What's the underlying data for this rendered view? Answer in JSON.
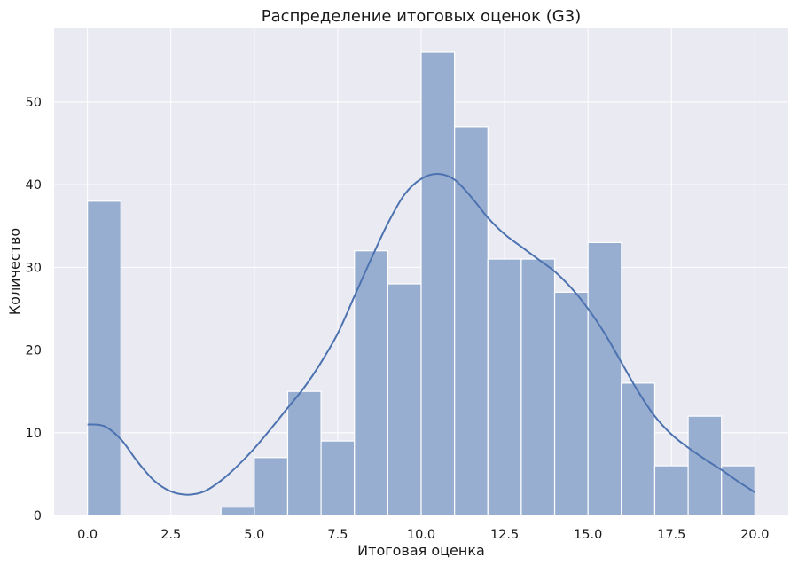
{
  "chart_data": {
    "type": "bar",
    "title": "Распределение итоговых оценок (G3)",
    "xlabel": "Итоговая оценка",
    "ylabel": "Количество",
    "xlim": [
      -1,
      21
    ],
    "ylim": [
      0,
      59
    ],
    "x_ticks": [
      0.0,
      2.5,
      5.0,
      7.5,
      10.0,
      12.5,
      15.0,
      17.5,
      20.0
    ],
    "x_tick_labels": [
      "0.0",
      "2.5",
      "5.0",
      "7.5",
      "10.0",
      "12.5",
      "15.0",
      "17.5",
      "20.0"
    ],
    "y_ticks": [
      0,
      10,
      20,
      30,
      40,
      50
    ],
    "y_tick_labels": [
      "0",
      "10",
      "20",
      "30",
      "40",
      "50"
    ],
    "grid": true,
    "colors": {
      "background": "#eaeaf2",
      "grid": "#ffffff",
      "bar": "#98aed1",
      "kde": "#4c72b0"
    },
    "bins": [
      {
        "x0": 0,
        "x1": 1,
        "count": 38
      },
      {
        "x0": 1,
        "x1": 2,
        "count": 0
      },
      {
        "x0": 2,
        "x1": 3,
        "count": 0
      },
      {
        "x0": 3,
        "x1": 4,
        "count": 0
      },
      {
        "x0": 4,
        "x1": 5,
        "count": 1
      },
      {
        "x0": 5,
        "x1": 6,
        "count": 7
      },
      {
        "x0": 6,
        "x1": 7,
        "count": 15
      },
      {
        "x0": 7,
        "x1": 8,
        "count": 9
      },
      {
        "x0": 8,
        "x1": 9,
        "count": 32
      },
      {
        "x0": 9,
        "x1": 10,
        "count": 28
      },
      {
        "x0": 10,
        "x1": 11,
        "count": 56
      },
      {
        "x0": 11,
        "x1": 12,
        "count": 47
      },
      {
        "x0": 12,
        "x1": 13,
        "count": 31
      },
      {
        "x0": 13,
        "x1": 14,
        "count": 31
      },
      {
        "x0": 14,
        "x1": 15,
        "count": 27
      },
      {
        "x0": 15,
        "x1": 16,
        "count": 33
      },
      {
        "x0": 16,
        "x1": 17,
        "count": 16
      },
      {
        "x0": 17,
        "x1": 18,
        "count": 6
      },
      {
        "x0": 18,
        "x1": 19,
        "count": 12
      },
      {
        "x0": 19,
        "x1": 20,
        "count": 6
      }
    ],
    "kde_curve": {
      "x": [
        0,
        0.5,
        1,
        1.5,
        2,
        2.5,
        3,
        3.5,
        4,
        4.5,
        5,
        5.5,
        6,
        6.5,
        7,
        7.5,
        8,
        8.5,
        9,
        9.5,
        10,
        10.5,
        11,
        11.5,
        12,
        12.5,
        13,
        13.5,
        14,
        14.5,
        15,
        15.5,
        16,
        16.5,
        17,
        17.5,
        18,
        18.5,
        19,
        19.5,
        20
      ],
      "y": [
        11,
        10.8,
        9.2,
        6.5,
        4.2,
        2.9,
        2.5,
        2.9,
        4.2,
        6.0,
        8.1,
        10.5,
        13.0,
        15.5,
        18.5,
        22.0,
        26.5,
        31.0,
        35.3,
        38.8,
        40.7,
        41.3,
        40.6,
        38.5,
        36.0,
        34.0,
        32.5,
        31.0,
        29.5,
        27.5,
        25.0,
        22.0,
        18.5,
        15.0,
        12.0,
        9.8,
        8.2,
        6.8,
        5.5,
        4.1,
        2.8
      ]
    }
  }
}
